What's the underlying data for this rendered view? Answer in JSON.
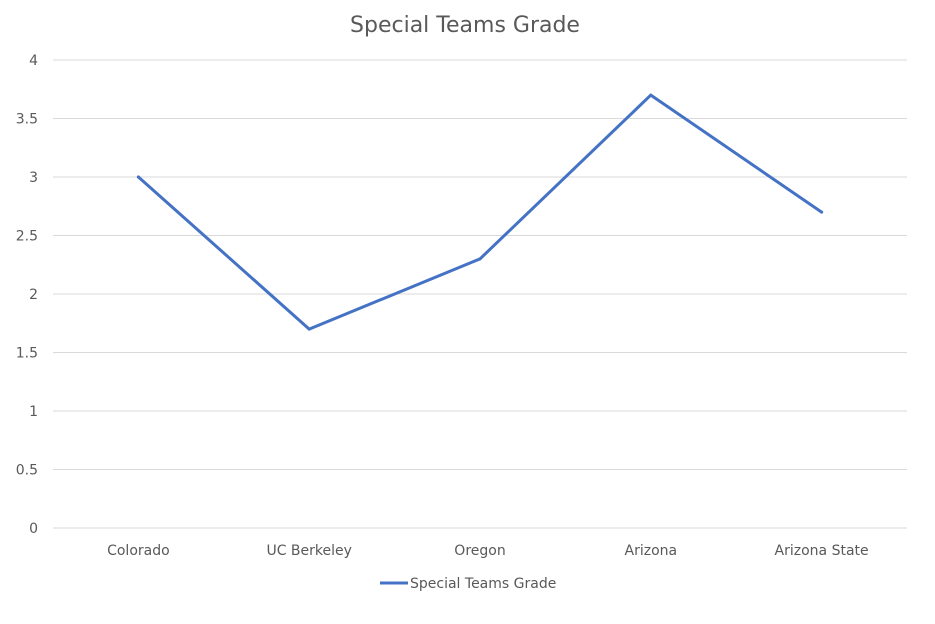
{
  "chart_data": {
    "type": "line",
    "title": "Special Teams Grade",
    "xlabel": "",
    "ylabel": "",
    "categories": [
      "Colorado",
      "UC Berkeley",
      "Oregon",
      "Arizona",
      "Arizona State"
    ],
    "series": [
      {
        "name": "Special Teams Grade",
        "values": [
          3.0,
          1.7,
          2.3,
          3.7,
          2.7
        ],
        "color": "#4472C4"
      }
    ],
    "ylim": [
      0,
      4
    ],
    "yticks": [
      "0",
      "0.5",
      "1",
      "1.5",
      "2",
      "2.5",
      "3",
      "3.5",
      "4"
    ],
    "grid": true,
    "legend_position": "bottom"
  }
}
